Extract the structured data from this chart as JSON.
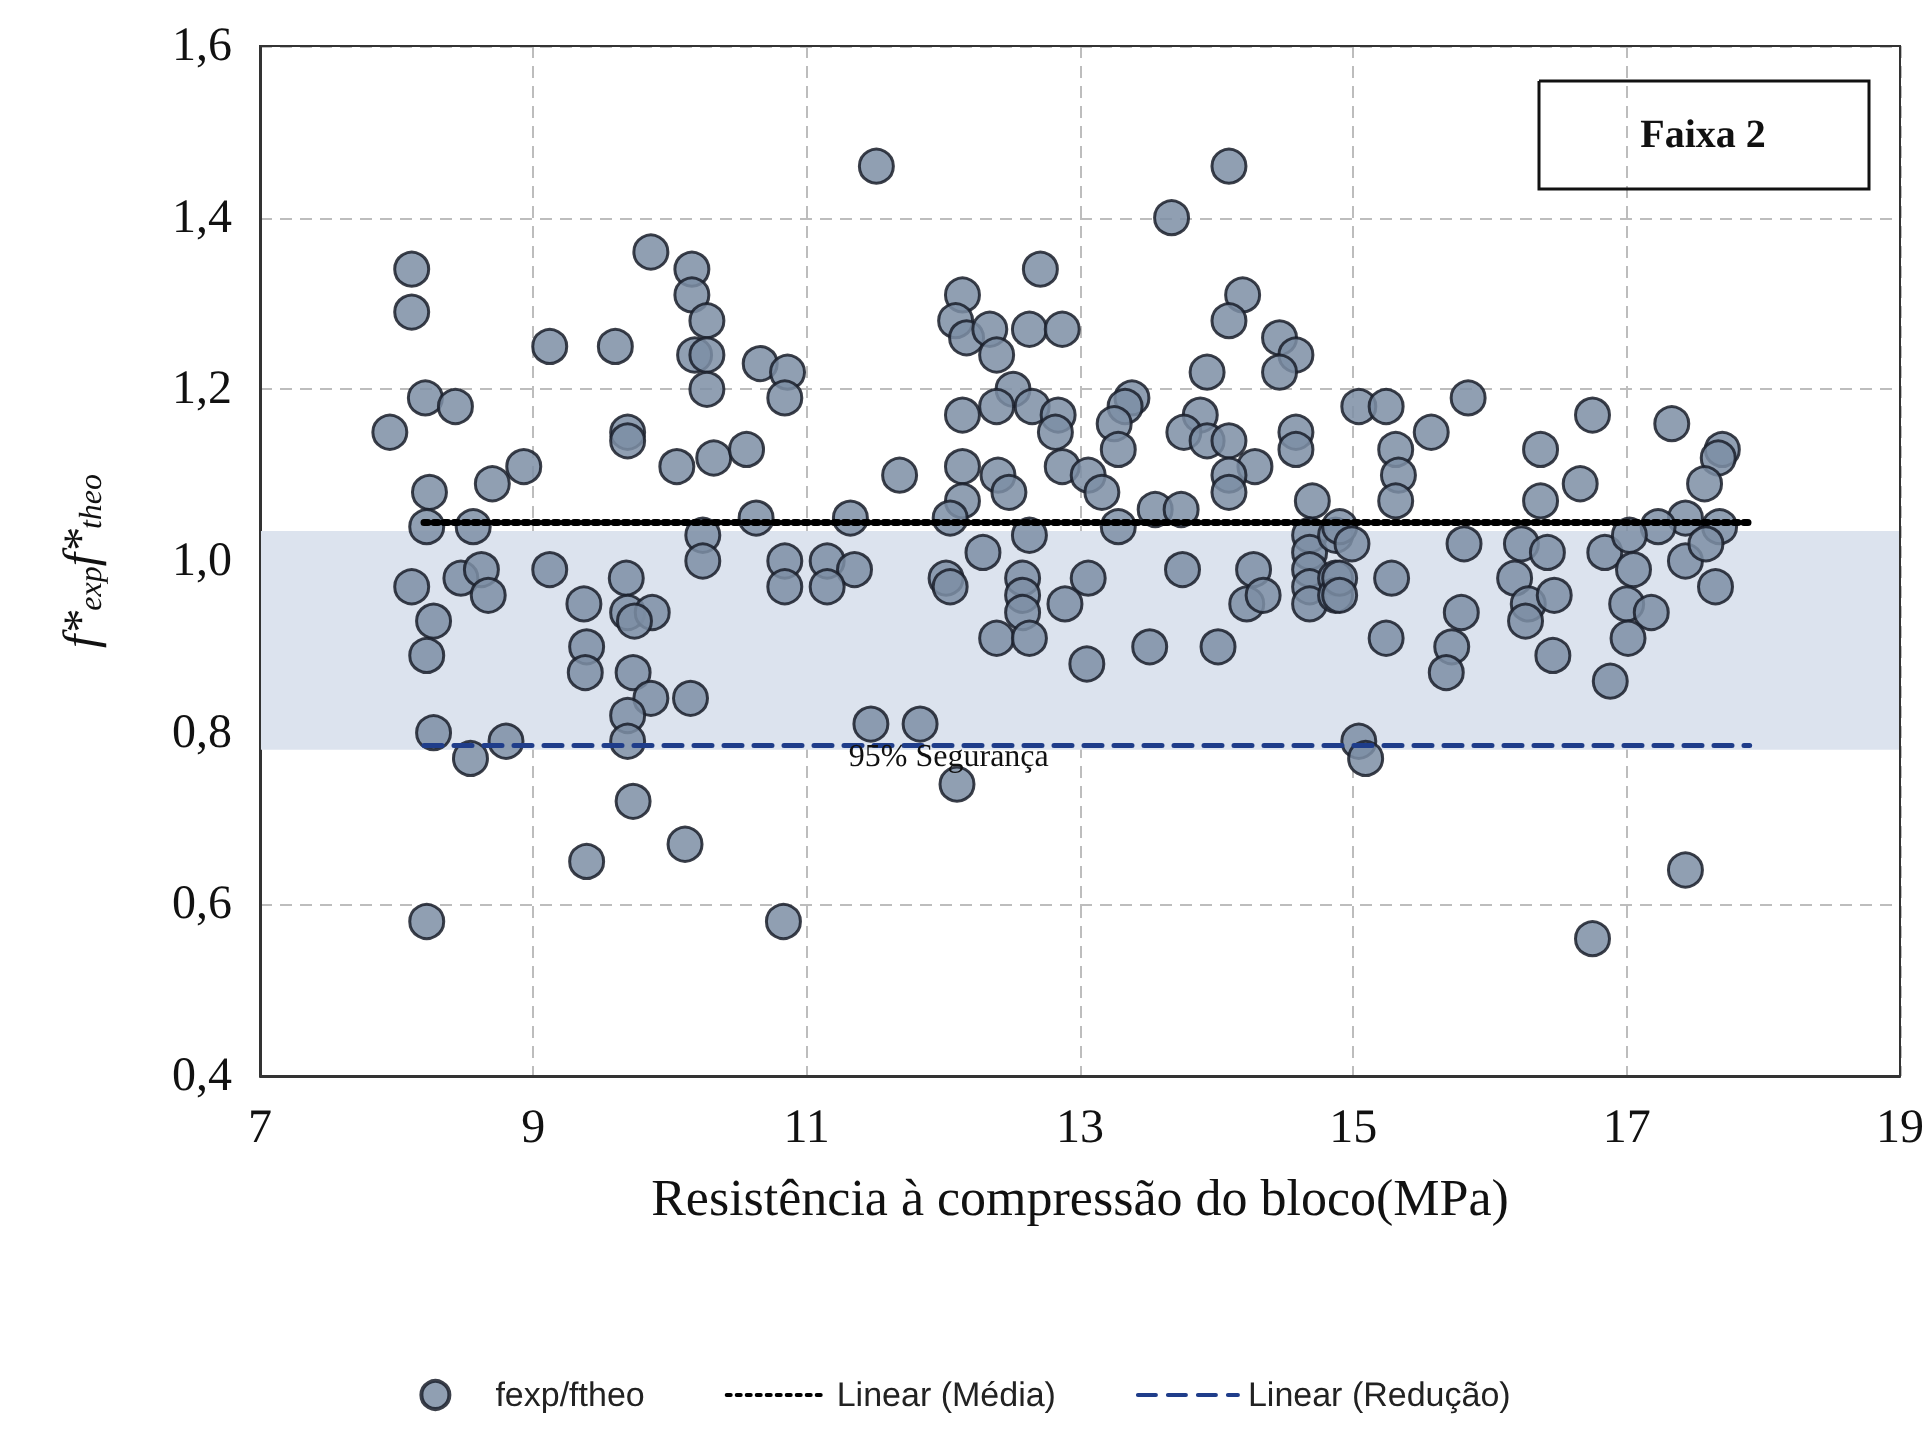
{
  "chart_data": {
    "type": "scatter",
    "xlabel": "Resistência à compressão do bloco(MPa)",
    "ylabel": "f*$_{exp}$f*$_{theo}$",
    "xlim": [
      7,
      19
    ],
    "xticks": [
      7,
      9,
      11,
      13,
      15,
      17,
      19
    ],
    "ylim": [
      0.4,
      1.6
    ],
    "yticks": [
      {
        "value": 0.4,
        "label": "0,4"
      },
      {
        "value": 0.6,
        "label": "0,6"
      },
      {
        "value": 0.8,
        "label": "0,8"
      },
      {
        "value": 1.0,
        "label": "1,0"
      },
      {
        "value": 1.2,
        "label": "1,2"
      },
      {
        "value": 1.4,
        "label": "1,4"
      },
      {
        "value": 1.6,
        "label": "1,6"
      }
    ],
    "grid": true,
    "legend": "bottom",
    "marker": "circle",
    "annotations": [
      "Faixa 2",
      "95% Segurança"
    ],
    "bands": [
      {
        "axis": "y",
        "from": 0.78,
        "to": 1.035,
        "color": "#dce3ee"
      }
    ],
    "series": [
      {
        "name": "fexp/ftheo",
        "color": "#7d8ea5",
        "x": [
          8.11,
          8.11,
          8.21,
          8.43,
          7.95,
          8.24,
          8.7,
          8.93,
          8.22,
          8.56,
          8.11,
          8.47,
          8.62,
          8.67,
          8.27,
          8.22,
          8.27,
          8.54,
          8.8,
          8.22,
          9.12,
          9.6,
          9.86,
          10.16,
          10.16,
          10.27,
          10.18,
          10.27,
          10.27,
          10.66,
          10.86,
          10.84,
          9.69,
          9.69,
          10.05,
          10.32,
          10.56,
          10.63,
          10.24,
          10.24,
          10.84,
          10.84,
          9.12,
          9.68,
          9.37,
          9.69,
          9.87,
          9.74,
          9.39,
          9.38,
          9.73,
          9.86,
          9.69,
          10.15,
          9.69,
          9.73,
          10.11,
          9.39,
          10.83,
          11.51,
          14.09,
          13.67,
          12.71,
          12.14,
          12.09,
          12.17,
          12.34,
          12.39,
          12.63,
          12.87,
          12.51,
          12.39,
          12.14,
          12.65,
          12.84,
          12.82,
          13.38,
          13.33,
          13.25,
          13.28,
          11.68,
          12.14,
          12.4,
          12.48,
          12.14,
          12.87,
          13.06,
          13.16,
          13.55,
          13.74,
          12.05,
          11.32,
          12.63,
          13.28,
          13.93,
          14.19,
          14.09,
          14.46,
          14.58,
          14.46,
          13.88,
          13.76,
          13.93,
          14.09,
          14.28,
          14.58,
          14.58,
          14.09,
          14.09,
          14.7,
          12.29,
          12.02,
          12.05,
          12.58,
          12.58,
          13.06,
          12.89,
          12.58,
          12.39,
          12.63,
          13.05,
          13.51,
          14.01,
          13.75,
          14.27,
          14.22,
          14.34,
          14.68,
          14.68,
          14.68,
          14.68,
          14.68,
          14.87,
          14.87,
          14.87,
          11.15,
          11.35,
          11.15,
          11.47,
          11.83,
          12.1,
          15.04,
          15.24,
          15.84,
          15.57,
          15.31,
          15.33,
          15.31,
          16.37,
          16.37,
          16.75,
          16.66,
          17.33,
          17.7,
          17.67,
          17.57,
          17.43,
          17.23,
          17.68,
          14.9,
          14.99,
          14.9,
          14.9,
          15.81,
          15.28,
          15.24,
          15.79,
          15.72,
          15.68,
          16.23,
          16.42,
          16.18,
          16.28,
          16.47,
          16.26,
          16.46,
          16.84,
          17.02,
          17.05,
          17.0,
          17.18,
          17.01,
          16.88,
          17.43,
          17.58,
          17.65,
          15.04,
          15.09,
          17.43,
          16.75
        ],
        "values": [
          1.34,
          1.29,
          1.19,
          1.18,
          1.15,
          1.08,
          1.09,
          1.11,
          1.04,
          1.04,
          0.97,
          0.98,
          0.99,
          0.96,
          0.93,
          0.89,
          0.8,
          0.77,
          0.79,
          0.58,
          1.25,
          1.25,
          1.36,
          1.34,
          1.31,
          1.28,
          1.24,
          1.24,
          1.2,
          1.23,
          1.22,
          1.19,
          1.15,
          1.14,
          1.11,
          1.12,
          1.13,
          1.05,
          1.03,
          1.0,
          1.0,
          0.97,
          0.99,
          0.98,
          0.95,
          0.94,
          0.94,
          0.93,
          0.9,
          0.87,
          0.87,
          0.84,
          0.82,
          0.84,
          0.79,
          0.72,
          0.67,
          0.65,
          0.58,
          1.46,
          1.46,
          1.4,
          1.34,
          1.31,
          1.28,
          1.26,
          1.27,
          1.24,
          1.27,
          1.27,
          1.2,
          1.18,
          1.17,
          1.18,
          1.17,
          1.15,
          1.19,
          1.18,
          1.16,
          1.13,
          1.1,
          1.11,
          1.1,
          1.08,
          1.07,
          1.11,
          1.1,
          1.08,
          1.06,
          1.06,
          1.05,
          1.05,
          1.03,
          1.04,
          1.22,
          1.31,
          1.28,
          1.26,
          1.24,
          1.22,
          1.17,
          1.15,
          1.14,
          1.14,
          1.11,
          1.15,
          1.13,
          1.1,
          1.08,
          1.07,
          1.01,
          0.98,
          0.97,
          0.98,
          0.96,
          0.98,
          0.95,
          0.94,
          0.91,
          0.91,
          0.88,
          0.9,
          0.9,
          0.99,
          0.99,
          0.95,
          0.96,
          1.03,
          1.01,
          0.99,
          0.97,
          0.95,
          1.03,
          0.98,
          0.96,
          1.0,
          0.99,
          0.97,
          0.81,
          0.81,
          0.74,
          1.18,
          1.18,
          1.19,
          1.15,
          1.13,
          1.1,
          1.07,
          1.13,
          1.07,
          1.17,
          1.09,
          1.16,
          1.13,
          1.12,
          1.09,
          1.05,
          1.04,
          1.04,
          1.04,
          1.02,
          0.98,
          0.96,
          1.02,
          0.98,
          0.91,
          0.94,
          0.9,
          0.87,
          1.02,
          1.01,
          0.98,
          0.95,
          0.96,
          0.93,
          0.89,
          1.01,
          1.03,
          0.99,
          0.95,
          0.94,
          0.91,
          0.86,
          1.0,
          1.02,
          0.97,
          0.79,
          0.77,
          0.64,
          0.56
        ]
      },
      {
        "name": "Linear (Média)",
        "type": "line",
        "color": "#000000",
        "line_style": "dotted",
        "marker": "none",
        "x": [
          8.2,
          17.9
        ],
        "values": [
          1.045,
          1.045
        ]
      },
      {
        "name": "Linear (Redução)",
        "type": "line",
        "color": "#1f3d8a",
        "line_style": "dashed",
        "marker": "none",
        "x": [
          8.2,
          17.9
        ],
        "values": [
          0.785,
          0.785
        ]
      }
    ]
  }
}
